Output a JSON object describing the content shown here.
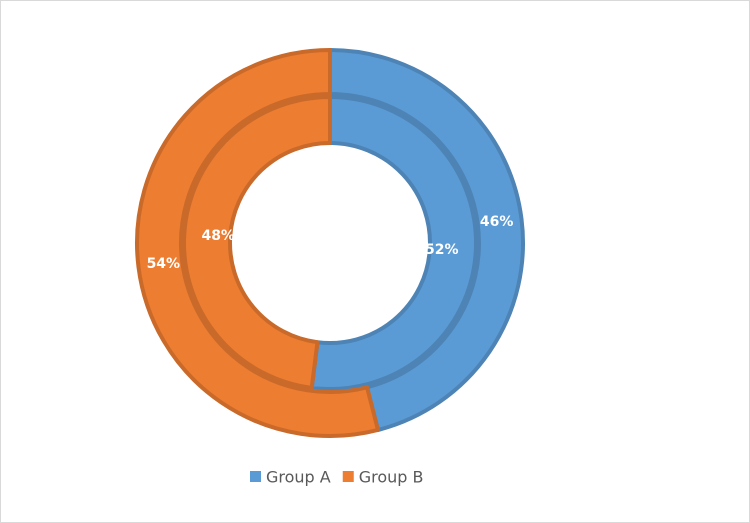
{
  "chart_data": {
    "type": "doughnut",
    "categories": [
      "Group A",
      "Group B"
    ],
    "colors": [
      "#5b9bd5",
      "#ed7d31"
    ],
    "series": [
      {
        "values": [
          52,
          48
        ],
        "value_labels": [
          "52%",
          "48%"
        ]
      },
      {
        "values": [
          46,
          54
        ],
        "value_labels": [
          "46%",
          "54%"
        ]
      }
    ],
    "legend": "bottom"
  }
}
